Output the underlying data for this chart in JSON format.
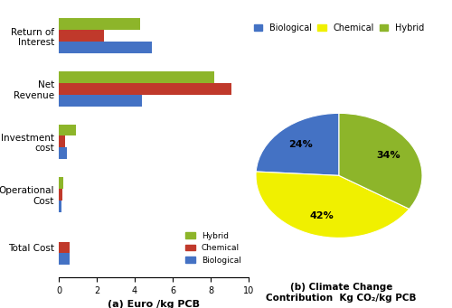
{
  "bar_categories": [
    "Total Cost",
    "Operational\nCost",
    "Investment\ncost",
    "Net\nRevenue",
    "Return of\nInterest"
  ],
  "bar_data": {
    "Hybrid": [
      0.0,
      0.25,
      0.9,
      8.2,
      4.3
    ],
    "Chemical": [
      0.55,
      0.2,
      0.35,
      9.1,
      2.4
    ],
    "Biological": [
      0.55,
      0.15,
      0.45,
      4.4,
      4.9
    ]
  },
  "bar_colors": {
    "Hybrid": "#8db52a",
    "Chemical": "#c0392b",
    "Biological": "#4472c4"
  },
  "bar_xlabel": "(a) Euro /kg PCB",
  "bar_xlim": [
    0,
    10
  ],
  "bar_xticks": [
    0,
    2,
    4,
    6,
    8,
    10
  ],
  "pie_labels": [
    "Biological",
    "Chemical",
    "Hybrid"
  ],
  "pie_sizes": [
    24,
    42,
    34
  ],
  "pie_colors": [
    "#4472c4",
    "#f0f000",
    "#8db52a"
  ],
  "pie_title": "(b) Climate Change\nContribution  Kg CO₂/kg PCB",
  "legend_bar_order": [
    "Hybrid",
    "Chemical",
    "Biological"
  ],
  "legend_pie_order": [
    "Biological",
    "Chemical",
    "Hybrid"
  ]
}
